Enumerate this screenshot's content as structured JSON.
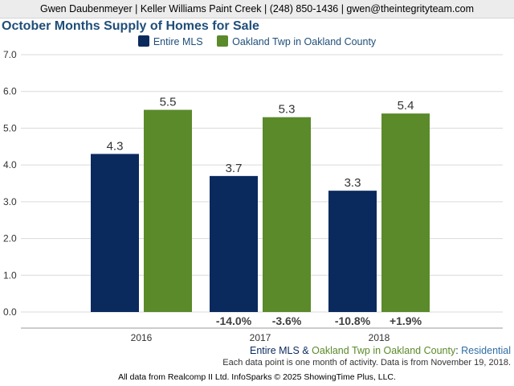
{
  "header": {
    "agent_line": "Gwen Daubenmeyer | Keller Williams Paint Creek | (248) 850-1436 | gwen@theintegrityteam.com"
  },
  "chart_data": {
    "type": "bar",
    "title": "October Months Supply of Homes for Sale",
    "categories": [
      "2016",
      "2017",
      "2018"
    ],
    "series": [
      {
        "name": "Entire MLS",
        "color": "#0a2a5e",
        "values": [
          4.3,
          3.7,
          3.3
        ],
        "labels": [
          "4.3",
          "3.7",
          "3.3"
        ],
        "changes": [
          "",
          "-14.0%",
          "-10.8%"
        ]
      },
      {
        "name": "Oakland Twp in Oakland County",
        "color": "#5a8a2a",
        "values": [
          5.5,
          5.3,
          5.4
        ],
        "labels": [
          "5.5",
          "5.3",
          "5.4"
        ],
        "changes": [
          "",
          "-3.6%",
          "+1.9%"
        ]
      }
    ],
    "ylim": [
      0,
      7
    ],
    "yticks": [
      "0.0",
      "1.0",
      "2.0",
      "3.0",
      "4.0",
      "5.0",
      "6.0",
      "7.0"
    ],
    "grid": true,
    "legend_position": "top"
  },
  "footer": {
    "series_a": "Entire MLS",
    "amp": " & ",
    "series_b": "Oakland Twp in Oakland County",
    "colon": ": ",
    "property_type": "Residential",
    "note": "Each data point is one month of activity. Data is from November 19, 2018.",
    "credit": "All data from Realcomp II Ltd. InfoSparks © 2025 ShowingTime Plus, LLC."
  }
}
